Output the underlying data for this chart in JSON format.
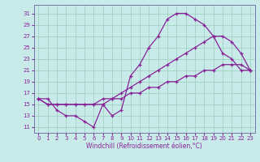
{
  "xlabel": "Windchill (Refroidissement éolien,°C)",
  "bg_color": "#c8eae8",
  "grid_color": "#99ccbb",
  "line_color": "#882299",
  "spine_color": "#7777aa",
  "xlim": [
    -0.5,
    23.5
  ],
  "ylim": [
    10,
    32.5
  ],
  "yticks": [
    11,
    13,
    15,
    17,
    19,
    21,
    23,
    25,
    27,
    29,
    31
  ],
  "xticks": [
    0,
    1,
    2,
    3,
    4,
    5,
    6,
    7,
    8,
    9,
    10,
    11,
    12,
    13,
    14,
    15,
    16,
    17,
    18,
    19,
    20,
    21,
    22,
    23
  ],
  "line1_x": [
    0,
    1,
    2,
    3,
    4,
    5,
    6,
    7,
    8,
    9,
    10,
    11,
    12,
    13,
    14,
    15,
    16,
    17,
    18,
    19,
    20,
    21,
    22,
    23
  ],
  "line1_y": [
    16,
    16,
    14,
    13,
    13,
    12,
    11,
    15,
    13,
    14,
    20,
    22,
    25,
    27,
    30,
    31,
    31,
    30,
    29,
    27,
    24,
    23,
    21,
    21
  ],
  "line2_x": [
    0,
    1,
    2,
    3,
    4,
    5,
    6,
    7,
    8,
    9,
    10,
    11,
    12,
    13,
    14,
    15,
    16,
    17,
    18,
    19,
    20,
    21,
    22,
    23
  ],
  "line2_y": [
    16,
    15,
    15,
    15,
    15,
    15,
    15,
    15,
    16,
    16,
    17,
    17,
    18,
    18,
    19,
    19,
    20,
    20,
    21,
    21,
    22,
    22,
    22,
    21
  ],
  "line3_x": [
    0,
    1,
    2,
    3,
    4,
    5,
    6,
    7,
    8,
    9,
    10,
    11,
    12,
    13,
    14,
    15,
    16,
    17,
    18,
    19,
    20,
    21,
    22,
    23
  ],
  "line3_y": [
    16,
    15,
    15,
    15,
    15,
    15,
    15,
    16,
    16,
    17,
    18,
    19,
    20,
    21,
    22,
    23,
    24,
    25,
    26,
    27,
    27,
    26,
    24,
    21
  ],
  "tick_fontsize": 5,
  "xlabel_fontsize": 5.5,
  "marker_size": 3,
  "linewidth": 0.9
}
